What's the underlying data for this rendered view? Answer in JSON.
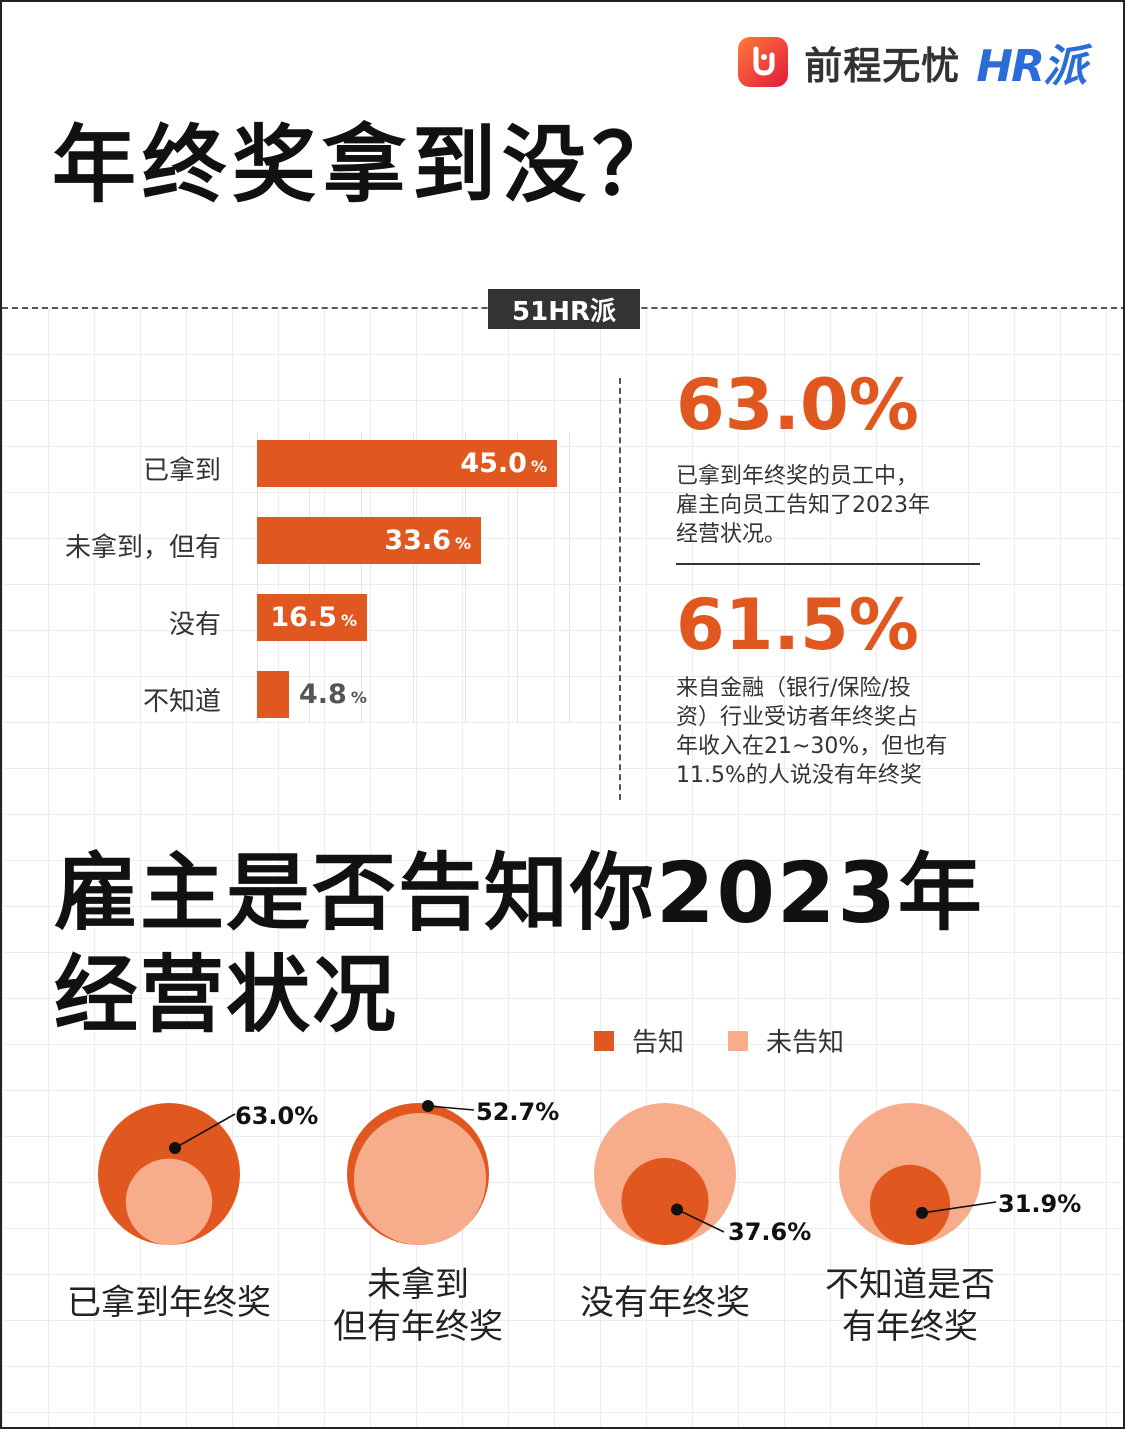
{
  "header": {
    "brand_name": "前程无忧",
    "hr_brand": "HR派",
    "title": "年终奖拿到没？"
  },
  "section_tag": "51HR派",
  "colors": {
    "accent": "#e0581f",
    "light": "#f7ad8b",
    "dark": "#333333"
  },
  "stats": [
    {
      "value": "63.0%",
      "lines": [
        "已拿到年终奖的员工中，",
        "雇主向员工告知了2023年",
        "经营状况。"
      ]
    },
    {
      "value": "61.5%",
      "lines": [
        "来自金融（银行/保险/投",
        "资）行业受访者年终奖占",
        "年收入在21~30%，但也有",
        "11.5%的人说没有年终奖"
      ]
    }
  ],
  "section2": {
    "title_lines": [
      "雇主是否告知你2023年",
      "经营状况"
    ],
    "legend": [
      {
        "label": "告知",
        "color": "#e0581f"
      },
      {
        "label": "未告知",
        "color": "#f7ad8b"
      }
    ]
  },
  "chart_data": [
    {
      "type": "bar",
      "orientation": "horizontal",
      "categories": [
        "已拿到",
        "未拿到，但有",
        "没有",
        "不知道"
      ],
      "values": [
        45.0,
        33.6,
        16.5,
        4.8
      ],
      "unit": "%",
      "xlim": [
        0,
        45
      ]
    },
    {
      "type": "pie",
      "style": "nested-circles",
      "categories": [
        "已拿到年终奖",
        "未拿到\n但有年终奖",
        "没有年终奖",
        "不知道是否\n有年终奖"
      ],
      "series": [
        {
          "name": "告知",
          "values": [
            63.0,
            52.7,
            37.6,
            31.9
          ]
        },
        {
          "name": "未告知",
          "values": [
            37.0,
            47.3,
            62.4,
            68.1
          ]
        }
      ],
      "data_labels": [
        "63.0%",
        "52.7%",
        "37.6%",
        "31.9%"
      ]
    }
  ]
}
